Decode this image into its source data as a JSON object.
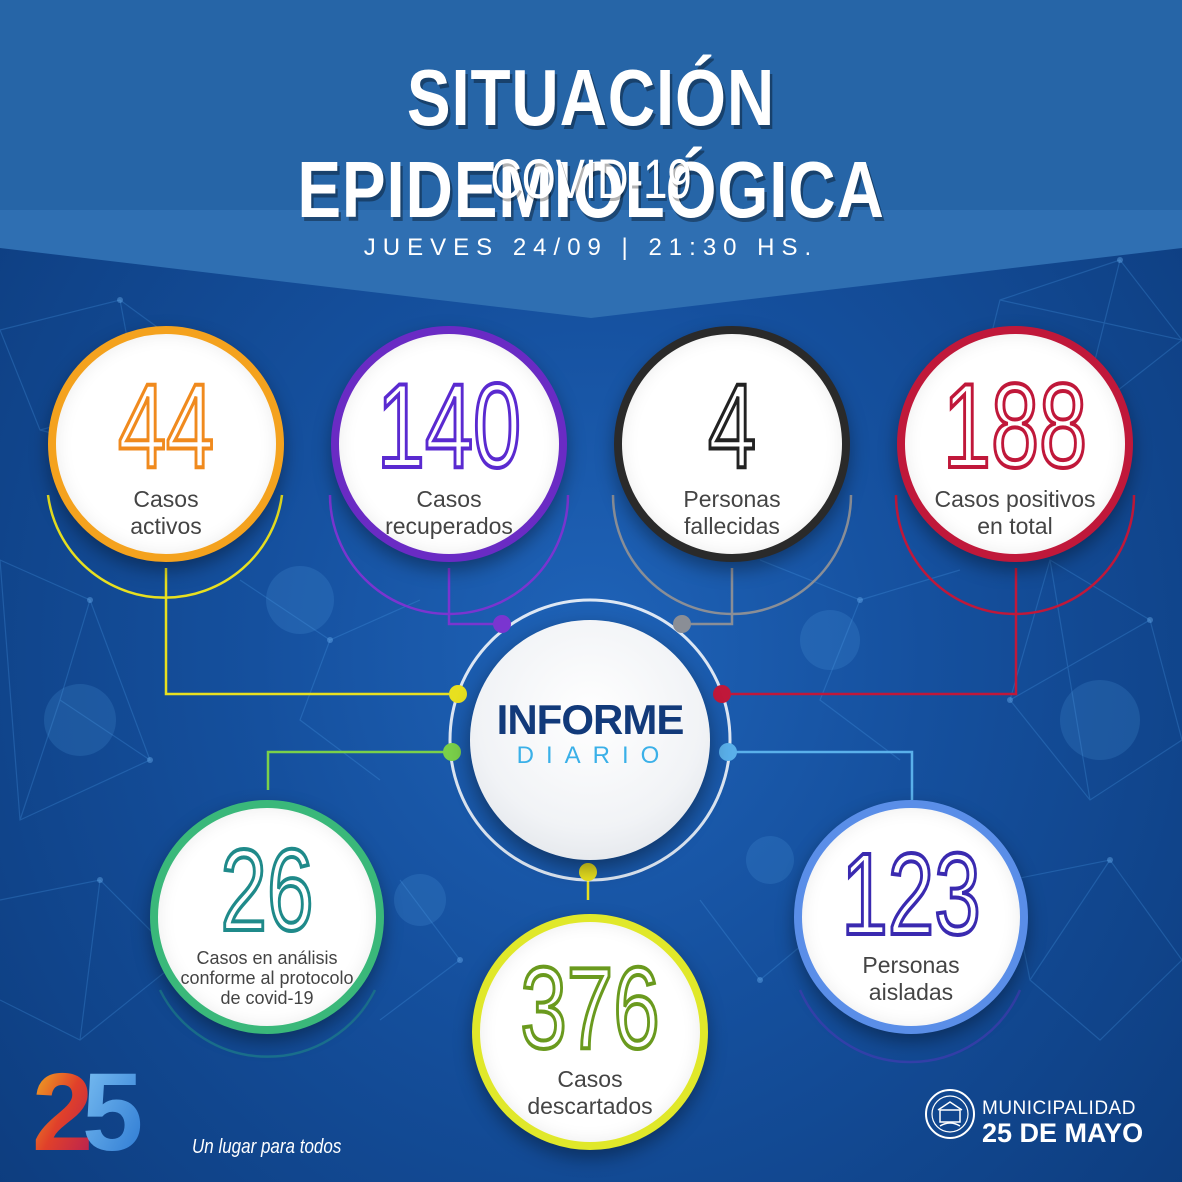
{
  "header": {
    "title": "SITUACIÓN EPIDEMIOLÓGICA",
    "subtitle": "COVID-19",
    "date": "JUEVES 24/09 | 21:30 HS."
  },
  "stats": {
    "activos": {
      "value": "44",
      "line1": "Casos",
      "line2": "activos",
      "color": "#f08a1e"
    },
    "recuperados": {
      "value": "140",
      "line1": "Casos",
      "line2": "recuperados",
      "color": "#6a2bc4"
    },
    "fallecidas": {
      "value": "4",
      "line1": "Personas",
      "line2": "fallecidas",
      "color": "#3a3a3a"
    },
    "total": {
      "value": "188",
      "line1": "Casos positivos",
      "line2": "en total",
      "color": "#c0183a"
    },
    "analisis": {
      "value": "26",
      "line1": "Casos en análisis",
      "line2": "conforme al protocolo",
      "line3": "de covid-19",
      "color": "#1f8a8a"
    },
    "descartados": {
      "value": "376",
      "line1": "Casos",
      "line2": "descartados",
      "color": "#8ab81e"
    },
    "aisladas": {
      "value": "123",
      "line1": "Personas",
      "line2": "aisladas",
      "color": "#4a3ab8"
    }
  },
  "center": {
    "title": "INFORME",
    "subtitle": "DIARIO"
  },
  "footer": {
    "logo_number": "25",
    "slogan": "Un lugar para todos",
    "muni_line1": "MUNICIPALIDAD",
    "muni_line2": "25 DE MAYO"
  }
}
